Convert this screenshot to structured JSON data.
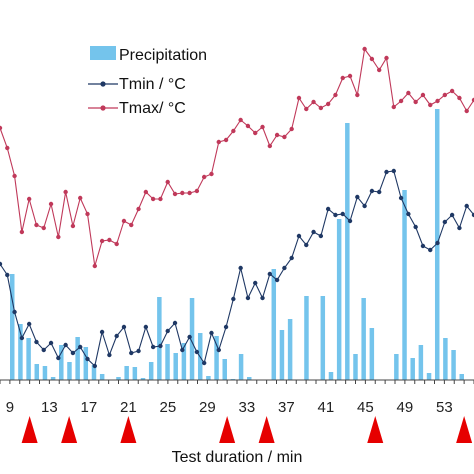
{
  "chart_data": {
    "type": "bar+line",
    "xlabel": "Test duration  / min",
    "x_tick_labels": [
      "9",
      "13",
      "17",
      "21",
      "25",
      "29",
      "33",
      "37",
      "41",
      "45",
      "49",
      "53"
    ],
    "x_start": 8,
    "x_end": 56,
    "x_step": 1,
    "legend": [
      "Precipitation",
      "Tmin / °C",
      "Tmax/ °C"
    ],
    "legend_position": "top-center",
    "colors": {
      "precipitation": "#74c4ec",
      "tmin": "#1f3864",
      "tmax": "#c0395a",
      "marker": "#e60000"
    },
    "series": [
      {
        "name": "Precipitation",
        "kind": "bar",
        "values": [
          0,
          106,
          56,
          42,
          16,
          14,
          3,
          35,
          18,
          43,
          33,
          15,
          6,
          0,
          3,
          14,
          13,
          2,
          18,
          83,
          36,
          27,
          37,
          82,
          47,
          4,
          44,
          21,
          1,
          26,
          3,
          0,
          0,
          111,
          50,
          61,
          0,
          84,
          0,
          84,
          8,
          161,
          257,
          26,
          82,
          52,
          0,
          0,
          26,
          190,
          22,
          35,
          7,
          271,
          42,
          30,
          6,
          0
        ]
      },
      {
        "name": "Tmin / °C",
        "kind": "line",
        "values": [
          116,
          105,
          68,
          42,
          56,
          38,
          30,
          37,
          22,
          35,
          27,
          33,
          21,
          14,
          48,
          25,
          44,
          53,
          27,
          29,
          53,
          33,
          34,
          49,
          57,
          30,
          43,
          28,
          17,
          47,
          30,
          53,
          81,
          112,
          82,
          97,
          82,
          106,
          100,
          112,
          122,
          144,
          135,
          148,
          144,
          171,
          165,
          166,
          159,
          183,
          174,
          189,
          188,
          208,
          209,
          182,
          166,
          153,
          134,
          130,
          137,
          158,
          165,
          152,
          174,
          165
        ]
      },
      {
        "name": "Tmax/ °C",
        "kind": "line",
        "values": [
          252,
          232,
          204,
          148,
          181,
          155,
          152,
          176,
          143,
          188,
          154,
          182,
          166,
          114,
          139,
          140,
          136,
          159,
          155,
          171,
          188,
          181,
          181,
          198,
          186,
          187,
          187,
          189,
          203,
          206,
          238,
          240,
          249,
          260,
          254,
          247,
          253,
          234,
          245,
          243,
          251,
          282,
          271,
          278,
          272,
          276,
          285,
          302,
          304,
          285,
          331,
          321,
          310,
          322,
          273,
          279,
          287,
          278,
          285,
          275,
          279,
          285,
          289,
          282,
          269,
          280
        ]
      }
    ],
    "events": [
      11,
      15,
      21,
      31,
      35,
      46,
      55
    ]
  }
}
